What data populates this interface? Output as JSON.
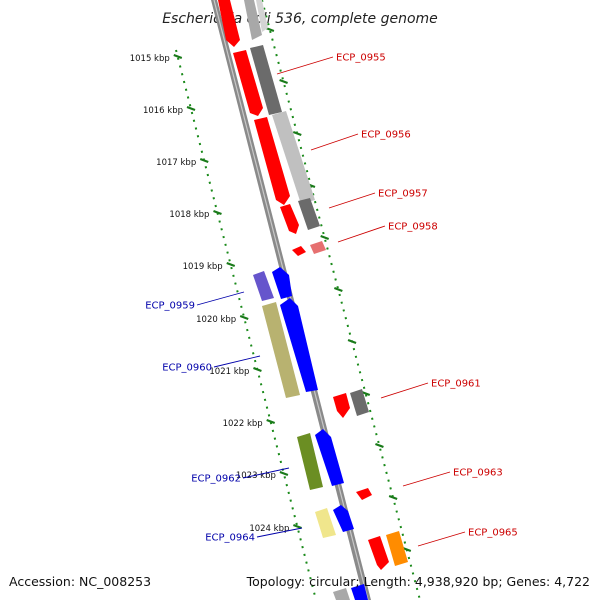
{
  "title": "Escherichia coli 536, complete genome",
  "footer": {
    "accession": "Accession: NC_008253",
    "summary": "Topology: circular; Length: 4,938,920 bp; Genes: 4,722"
  },
  "ticks": [
    "1015 kbp",
    "1016 kbp",
    "1017 kbp",
    "1018 kbp",
    "1019 kbp",
    "1020 kbp",
    "1021 kbp",
    "1022 kbp",
    "1023 kbp",
    "1024 kbp"
  ],
  "genes": {
    "forward": [
      "ECP_0955",
      "ECP_0956",
      "ECP_0957",
      "ECP_0958",
      "ECP_0961",
      "ECP_0963",
      "ECP_0965"
    ],
    "reverse": [
      "ECP_0959",
      "ECP_0960",
      "ECP_0962",
      "ECP_0964"
    ]
  },
  "colors": {
    "forward_label": "#cc0000",
    "reverse_label": "#0000aa",
    "backbone": "#8a8a8a",
    "tick": "#1a7a1a",
    "cds_forward": "#ff0000",
    "cds_reverse": "#0000ff"
  }
}
